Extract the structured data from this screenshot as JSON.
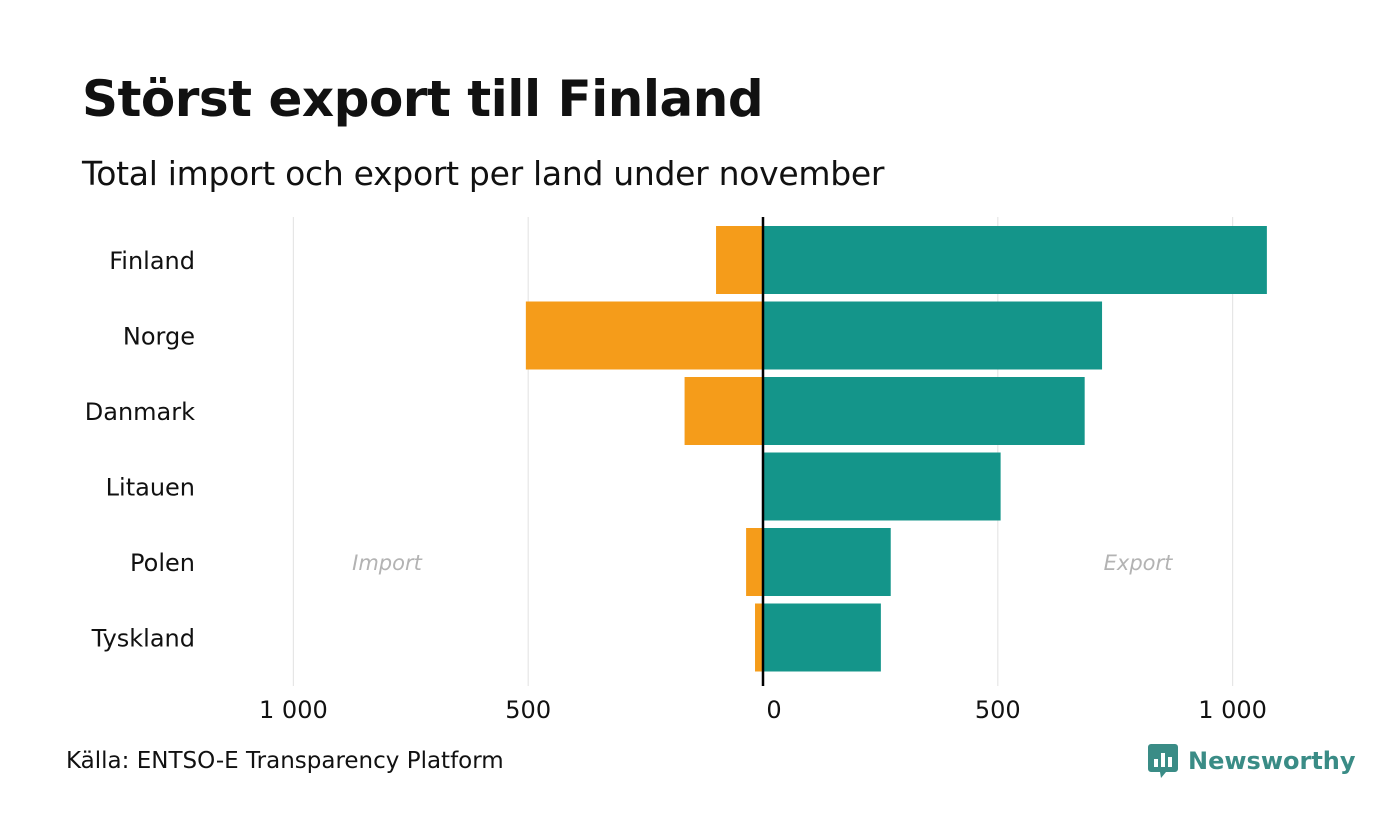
{
  "header": {
    "title": "Störst export till Finland",
    "subtitle": "Total import och export per land under november"
  },
  "footer": {
    "source": "Källa: ENTSO-E Transparency Platform",
    "brand": "Newsworthy"
  },
  "colors": {
    "import": "#f59c1a",
    "export": "#14958a",
    "grid": "#e6e6e6",
    "zero_line": "#000000",
    "side_label": "#b3b3b3",
    "brand": "#3a8c86"
  },
  "chart_data": {
    "type": "bar",
    "orientation": "horizontal-diverging",
    "categories": [
      "Finland",
      "Norge",
      "Danmark",
      "Litauen",
      "Polen",
      "Tyskland"
    ],
    "series": [
      {
        "name": "Import",
        "values": [
          -100,
          -505,
          -167,
          0,
          -36,
          -17
        ]
      },
      {
        "name": "Export",
        "values": [
          1073,
          722,
          685,
          506,
          272,
          251
        ]
      }
    ],
    "xlim": [
      -1000,
      1000
    ],
    "ticks": [
      -1000,
      -500,
      0,
      500,
      1000
    ],
    "tick_labels": [
      "1 000",
      "500",
      "0",
      "500",
      "1 000"
    ],
    "side_labels": {
      "left": "Import",
      "right": "Export"
    },
    "grid": true,
    "legend": "none"
  }
}
